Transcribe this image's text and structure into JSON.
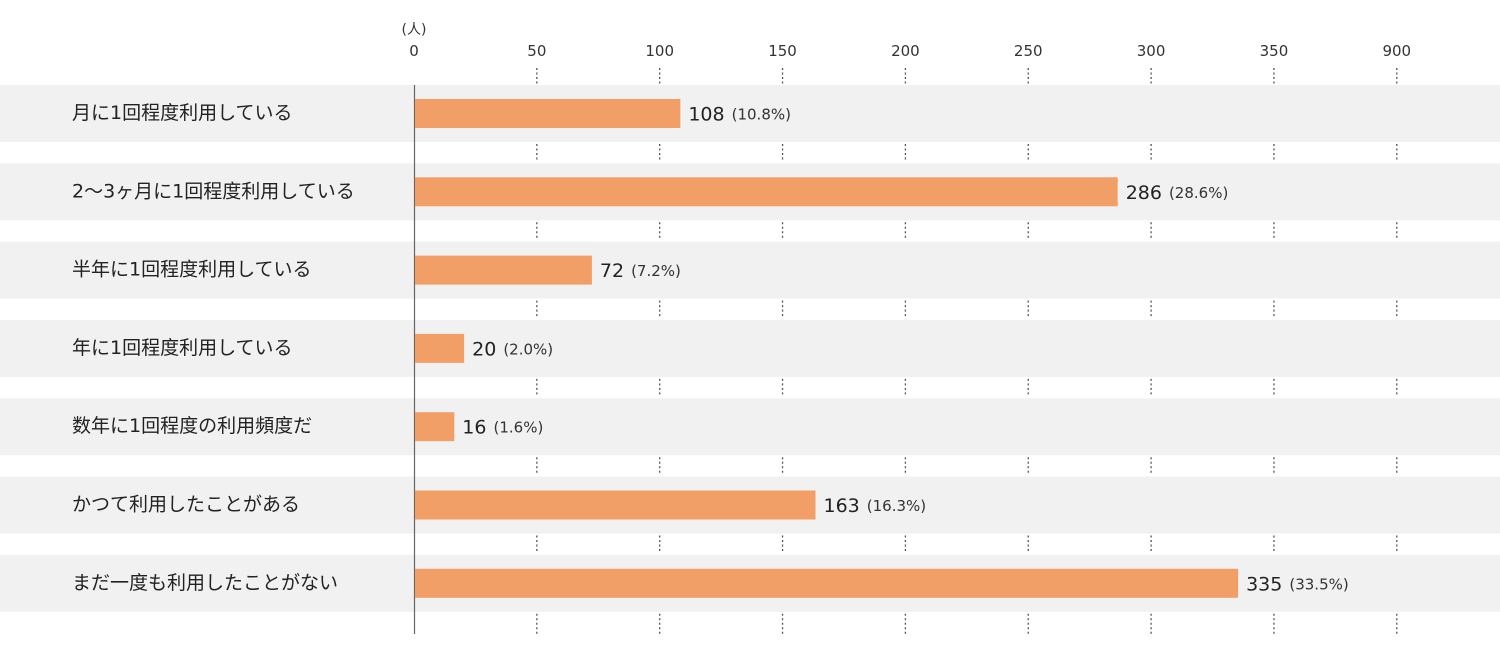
{
  "chart_data": {
    "type": "bar",
    "orientation": "horizontal",
    "unit_label": "(人)",
    "x_ticks": [
      "0",
      "50",
      "100",
      "150",
      "200",
      "250",
      "300",
      "350",
      "900"
    ],
    "xlim": [
      0,
      400
    ],
    "categories": [
      "月に1回程度利用している",
      "2〜3ヶ月に1回程度利用している",
      "半年に1回程度利用している",
      "年に1回程度利用している",
      "数年に1回程度の利用頻度だ",
      "かつて利用したことがある",
      "まだ一度も利用したことがない"
    ],
    "values": [
      108,
      286,
      72,
      20,
      16,
      163,
      335
    ],
    "value_labels": [
      "108",
      "286",
      "72",
      "20",
      "16",
      "163",
      "335"
    ],
    "percent_labels": [
      "(10.8%)",
      "(28.6%)",
      "(7.2%)",
      "(2.0%)",
      "(1.6%)",
      "(16.3%)",
      "(33.5%)"
    ],
    "colors": {
      "bar": "#f29e67",
      "band": "#f1f1f1"
    }
  }
}
